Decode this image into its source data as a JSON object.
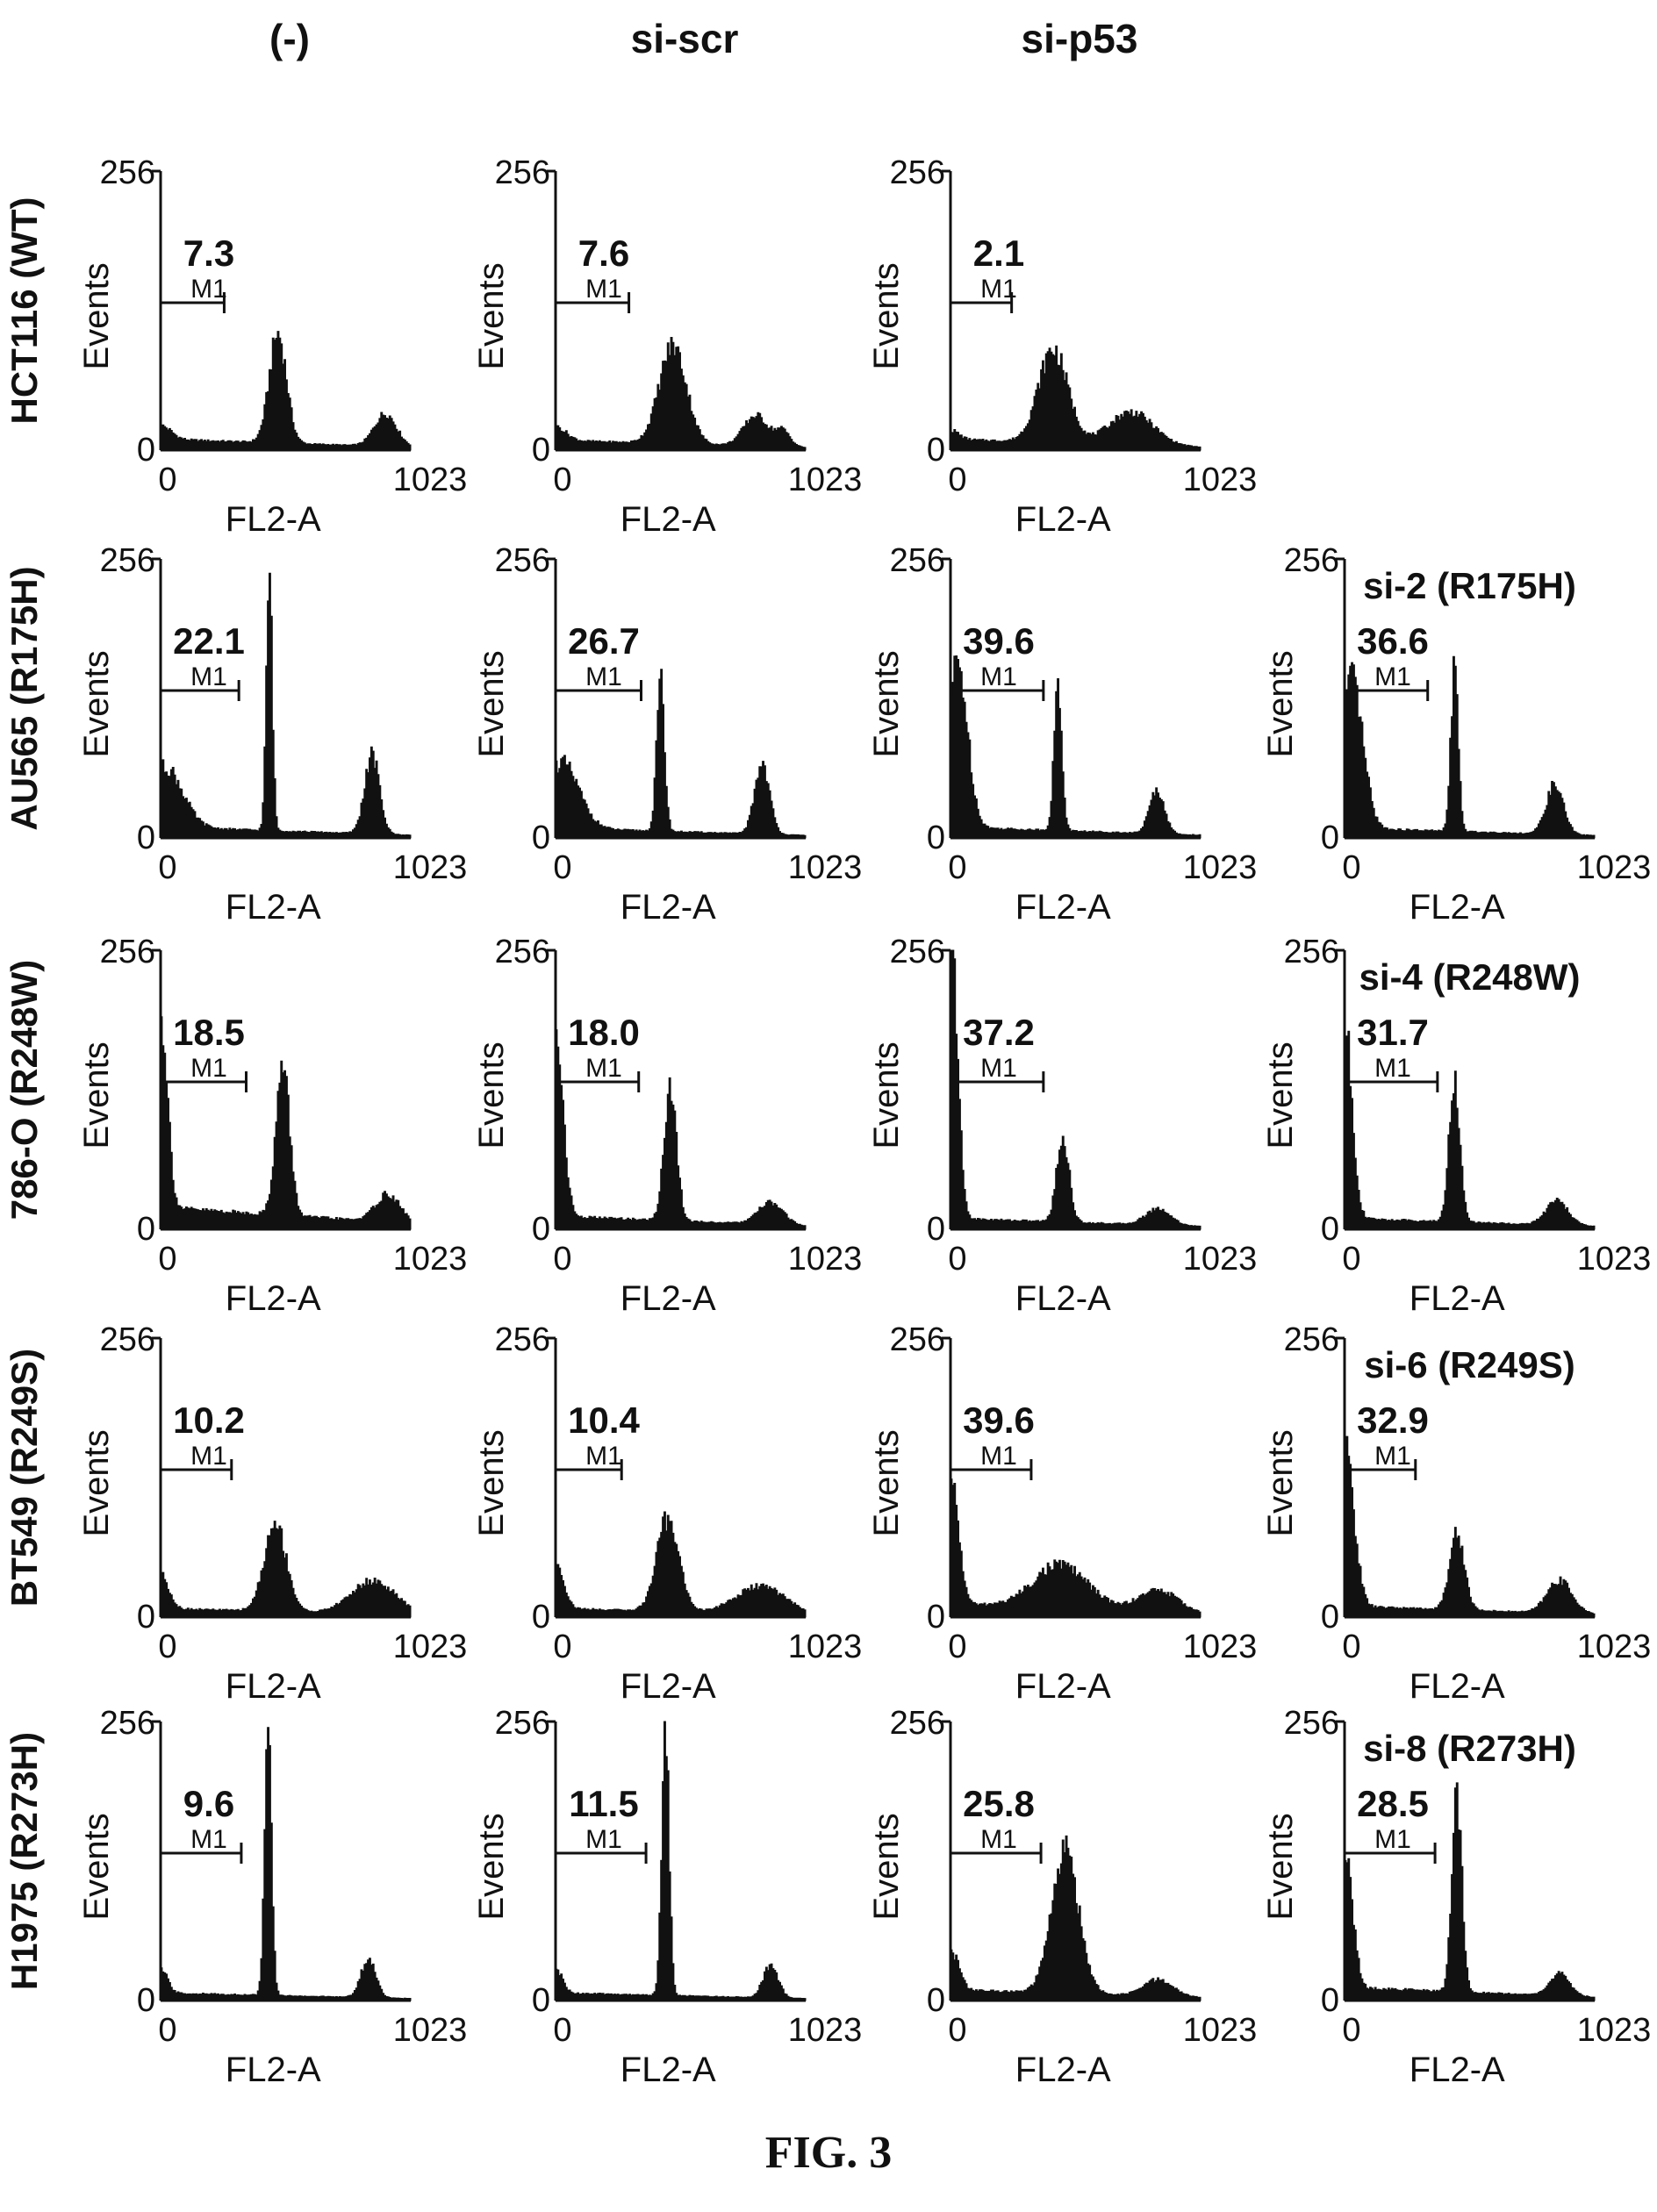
{
  "figure": {
    "caption": "FIG. 3",
    "columns": [
      "(-)",
      "si-scr",
      "si-p53",
      ""
    ]
  },
  "colors": {
    "ink": "#111111",
    "background": "#ffffff"
  },
  "chart_data": {
    "type": "histogram-grid",
    "xlabel": "FL2-A",
    "ylabel": "Events",
    "xlim": [
      0,
      1023
    ],
    "ylim": [
      0,
      256
    ],
    "x_ticks": [
      "0",
      "1023"
    ],
    "y_ticks": [
      "0",
      "256"
    ],
    "gate_name": "M1",
    "rows": [
      {
        "label": "HCT116 (WT)",
        "panels": [
          {
            "gate_value": "7.3",
            "gate_end": 260,
            "peaks": [
              [
                5,
                12,
                40
              ],
              [
                480,
                100,
                35
              ],
              [
                920,
                30,
                45
              ]
            ],
            "base": 10
          },
          {
            "gate_value": "7.6",
            "gate_end": 300,
            "peaks": [
              [
                5,
                12,
                40
              ],
              [
                480,
                90,
                55
              ],
              [
                820,
                28,
                50
              ],
              [
                930,
                14,
                30
              ]
            ],
            "base": 9
          },
          {
            "gate_value": "2.1",
            "gate_end": 250,
            "peaks": [
              [
                5,
                8,
                30
              ],
              [
                420,
                85,
                60
              ],
              [
                740,
                30,
                90
              ]
            ],
            "base": 10
          }
        ]
      },
      {
        "label": "AU565 (R175H)",
        "panels": [
          {
            "gate_value": "22.1",
            "gate_end": 320,
            "peaks": [
              [
                20,
                55,
                70
              ],
              [
                445,
                235,
                12
              ],
              [
                865,
                72,
                30
              ]
            ],
            "base": 10
          },
          {
            "gate_value": "26.7",
            "gate_end": 350,
            "peaks": [
              [
                25,
                60,
                70
              ],
              [
                430,
                135,
                16
              ],
              [
                845,
                65,
                30
              ]
            ],
            "base": 9
          },
          {
            "gate_value": "39.6",
            "gate_end": 380,
            "peaks": [
              [
                30,
                150,
                40
              ],
              [
                440,
                130,
                16
              ],
              [
                845,
                40,
                30
              ]
            ],
            "base": 10
          },
          {
            "gate_value": "36.6",
            "gate_end": 340,
            "peaks": [
              [
                30,
                135,
                45
              ],
              [
                450,
                150,
                15
              ],
              [
                860,
                45,
                35
              ]
            ],
            "base": 9
          }
        ]
      },
      {
        "label": "786-O (R248W)",
        "panels": [
          {
            "gate_value": "18.5",
            "gate_end": 350,
            "peaks": [
              [
                5,
                170,
                25
              ],
              [
                500,
                135,
                28
              ],
              [
                930,
                25,
                50
              ]
            ],
            "base": 20
          },
          {
            "gate_value": "18.0",
            "gate_end": 340,
            "peaks": [
              [
                5,
                160,
                28
              ],
              [
                470,
                125,
                25
              ],
              [
                880,
                20,
                50
              ]
            ],
            "base": 12
          },
          {
            "gate_value": "37.2",
            "gate_end": 380,
            "peaks": [
              [
                5,
                250,
                25
              ],
              [
                460,
                78,
                25
              ],
              [
                850,
                15,
                50
              ]
            ],
            "base": 10
          },
          {
            "gate_value": "31.7",
            "gate_end": 380,
            "peaks": [
              [
                5,
                170,
                28
              ],
              [
                450,
                130,
                22
              ],
              [
                870,
                22,
                45
              ]
            ],
            "base": 10
          }
        ]
      },
      {
        "label": "BT549 (R249S)",
        "panels": [
          {
            "gate_value": "10.2",
            "gate_end": 290,
            "peaks": [
              [
                5,
                30,
                30
              ],
              [
                470,
                80,
                45
              ],
              [
                870,
                30,
                90
              ]
            ],
            "base": 8
          },
          {
            "gate_value": "10.4",
            "gate_end": 270,
            "peaks": [
              [
                5,
                40,
                30
              ],
              [
                460,
                85,
                45
              ],
              [
                840,
                25,
                100
              ]
            ],
            "base": 8
          },
          {
            "gate_value": "39.6",
            "gate_end": 330,
            "peaks": [
              [
                5,
                110,
                30
              ],
              [
                450,
                40,
                110
              ],
              [
                850,
                20,
                80
              ]
            ],
            "base": 12
          },
          {
            "gate_value": "32.9",
            "gate_end": 290,
            "peaks": [
              [
                5,
                140,
                35
              ],
              [
                460,
                70,
                30
              ],
              [
                880,
                30,
                50
              ]
            ],
            "base": 10
          }
        ]
      },
      {
        "label": "H1975 (R273H)",
        "panels": [
          {
            "gate_value": "9.6",
            "gate_end": 330,
            "peaks": [
              [
                5,
                20,
                25
              ],
              [
                440,
                240,
                14
              ],
              [
                850,
                35,
                30
              ]
            ],
            "base": 7
          },
          {
            "gate_value": "11.5",
            "gate_end": 370,
            "peaks": [
              [
                5,
                20,
                25
              ],
              [
                450,
                240,
                15
              ],
              [
                880,
                30,
                30
              ]
            ],
            "base": 7
          },
          {
            "gate_value": "25.8",
            "gate_end": 370,
            "peaks": [
              [
                5,
                35,
                30
              ],
              [
                470,
                130,
                55
              ],
              [
                850,
                15,
                60
              ]
            ],
            "base": 10
          },
          {
            "gate_value": "28.5",
            "gate_end": 370,
            "peaks": [
              [
                5,
                120,
                20
              ],
              [
                40,
                30,
                20
              ],
              [
                460,
                180,
                20
              ],
              [
                880,
                20,
                40
              ]
            ],
            "base": 12
          }
        ]
      }
    ],
    "annotations": [
      {
        "row": 1,
        "col": 3,
        "text": "si-2 (R175H)"
      },
      {
        "row": 2,
        "col": 3,
        "text": "si-4 (R248W)"
      },
      {
        "row": 3,
        "col": 3,
        "text": "si-6 (R249S)"
      },
      {
        "row": 4,
        "col": 3,
        "text": "si-8 (R273H)"
      }
    ]
  }
}
